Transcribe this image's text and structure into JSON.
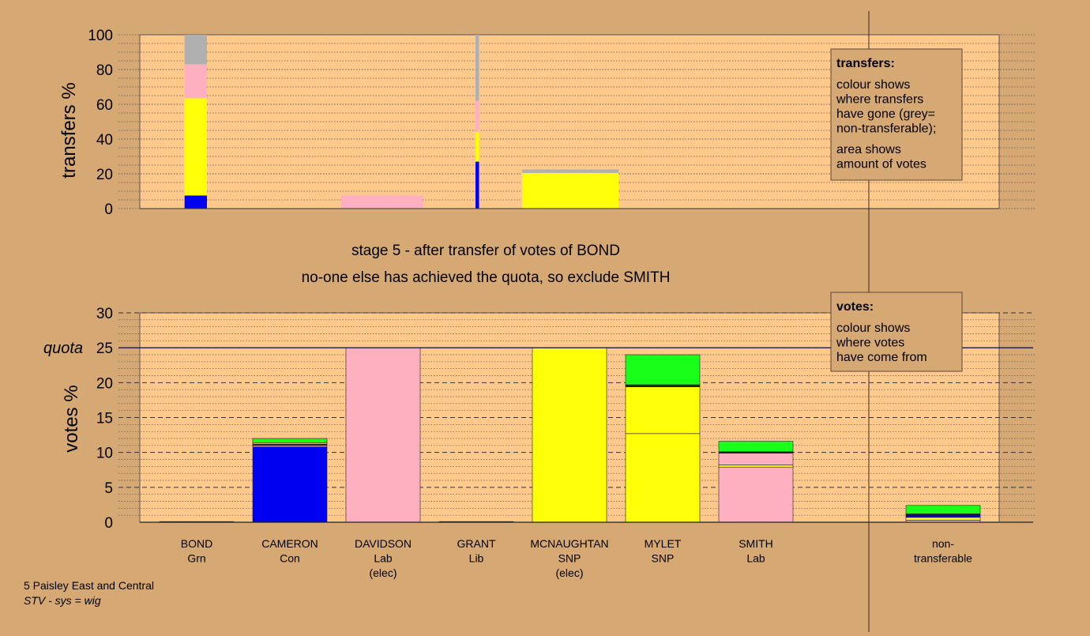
{
  "colors": {
    "background": "#d5a874",
    "plot_bg": "#ffc98c",
    "blue": "#0000f0",
    "yellow": "#ffff0a",
    "pink": "#ffb0c0",
    "grey": "#b0b0b0",
    "green": "#1aff1a",
    "dark": "#1a1a1a"
  },
  "headline": {
    "line1": "stage 5 - after transfer of votes of BOND",
    "line2": "no-one else has achieved the quota, so exclude SMITH"
  },
  "footer": {
    "line1": "5 Paisley East and Central",
    "line2": "STV - sys = wig"
  },
  "transfers_box": {
    "title": "transfers:",
    "lines": [
      "colour shows",
      "where transfers",
      "have gone (grey=",
      "non-transferable);"
    ],
    "lines2": [
      "area shows",
      "amount of votes"
    ]
  },
  "votes_box": {
    "title": "votes:",
    "lines": [
      "colour shows",
      "where votes",
      "have come from"
    ]
  },
  "chart_data": [
    {
      "type": "bar",
      "id": "transfers",
      "ylabel": "transfers %",
      "ylim": [
        0,
        100
      ],
      "yticks": [
        0,
        20,
        40,
        60,
        80,
        100
      ],
      "x_span": [
        0,
        9.6
      ],
      "bars": [
        {
          "label": "BOND",
          "x0": 0.5,
          "x1": 0.75,
          "segments": [
            {
              "color": "blue",
              "from": 0,
              "to": 7.5
            },
            {
              "color": "yellow",
              "from": 7.5,
              "to": 63.5
            },
            {
              "color": "pink",
              "from": 63.5,
              "to": 83
            },
            {
              "color": "grey",
              "from": 83,
              "to": 100
            }
          ]
        },
        {
          "label": "DAVIDSON",
          "x0": 2.25,
          "x1": 3.16,
          "segments": [
            {
              "color": "pink",
              "from": 0,
              "to": 7.5
            }
          ]
        },
        {
          "label": "GRANT",
          "x0": 3.75,
          "x1": 3.79,
          "segments": [
            {
              "color": "blue",
              "from": 0,
              "to": 27
            },
            {
              "color": "yellow",
              "from": 27,
              "to": 44
            },
            {
              "color": "pink",
              "from": 44,
              "to": 62
            },
            {
              "color": "grey",
              "from": 62,
              "to": 100
            }
          ]
        },
        {
          "label": "MCNAUGHTAN",
          "x0": 4.27,
          "x1": 5.35,
          "segments": [
            {
              "color": "yellow",
              "from": 0,
              "to": 20.5
            },
            {
              "color": "grey",
              "from": 20.5,
              "to": 22.5
            }
          ]
        }
      ]
    },
    {
      "type": "bar",
      "id": "votes",
      "ylabel": "votes %",
      "ylim": [
        0,
        30
      ],
      "yticks": [
        0,
        5,
        10,
        15,
        20,
        25,
        30
      ],
      "quota": {
        "label": "quota",
        "value": 25
      },
      "bars": [
        {
          "name": "BOND",
          "party": "Grn",
          "note": "",
          "segments": [
            {
              "color": "dark",
              "from": 0,
              "to": 0.1
            }
          ]
        },
        {
          "name": "CAMERON",
          "party": "Con",
          "note": "",
          "segments": [
            {
              "color": "blue",
              "from": 0,
              "to": 10.8
            },
            {
              "color": "pink",
              "from": 10.8,
              "to": 11.0
            },
            {
              "color": "dark",
              "from": 11.0,
              "to": 11.2
            },
            {
              "color": "yellow",
              "from": 11.2,
              "to": 11.4
            },
            {
              "color": "green",
              "from": 11.4,
              "to": 12.0
            }
          ]
        },
        {
          "name": "DAVIDSON",
          "party": "Lab",
          "note": "(elec)",
          "segments": [
            {
              "color": "pink",
              "from": 0,
              "to": 25.0
            }
          ]
        },
        {
          "name": "GRANT",
          "party": "Lib",
          "note": "",
          "segments": [
            {
              "color": "dark",
              "from": 0,
              "to": 0.1
            }
          ]
        },
        {
          "name": "MCNAUGHTAN",
          "party": "SNP",
          "note": "(elec)",
          "segments": [
            {
              "color": "yellow",
              "from": 0,
              "to": 25.0
            }
          ]
        },
        {
          "name": "MYLET",
          "party": "SNP",
          "note": "",
          "segments": [
            {
              "color": "yellow",
              "from": 0,
              "to": 12.7
            },
            {
              "color": "yellow",
              "from": 12.7,
              "to": 19.4
            },
            {
              "color": "dark",
              "from": 19.4,
              "to": 19.7
            },
            {
              "color": "green",
              "from": 19.7,
              "to": 24.0
            }
          ]
        },
        {
          "name": "SMITH",
          "party": "Lab",
          "note": "",
          "segments": [
            {
              "color": "pink",
              "from": 0,
              "to": 7.9
            },
            {
              "color": "yellow",
              "from": 7.9,
              "to": 8.2
            },
            {
              "color": "pink",
              "from": 8.2,
              "to": 9.9
            },
            {
              "color": "dark",
              "from": 9.9,
              "to": 10.1
            },
            {
              "color": "green",
              "from": 10.1,
              "to": 11.6
            }
          ]
        }
      ],
      "nontransferable": {
        "name": "non-",
        "party": "transferable",
        "segments": [
          {
            "color": "pink",
            "from": 0,
            "to": 0.3
          },
          {
            "color": "yellow",
            "from": 0.3,
            "to": 0.7
          },
          {
            "color": "blue",
            "from": 0.7,
            "to": 1.0
          },
          {
            "color": "dark",
            "from": 1.0,
            "to": 1.2
          },
          {
            "color": "green",
            "from": 1.2,
            "to": 2.4
          }
        ]
      }
    }
  ]
}
